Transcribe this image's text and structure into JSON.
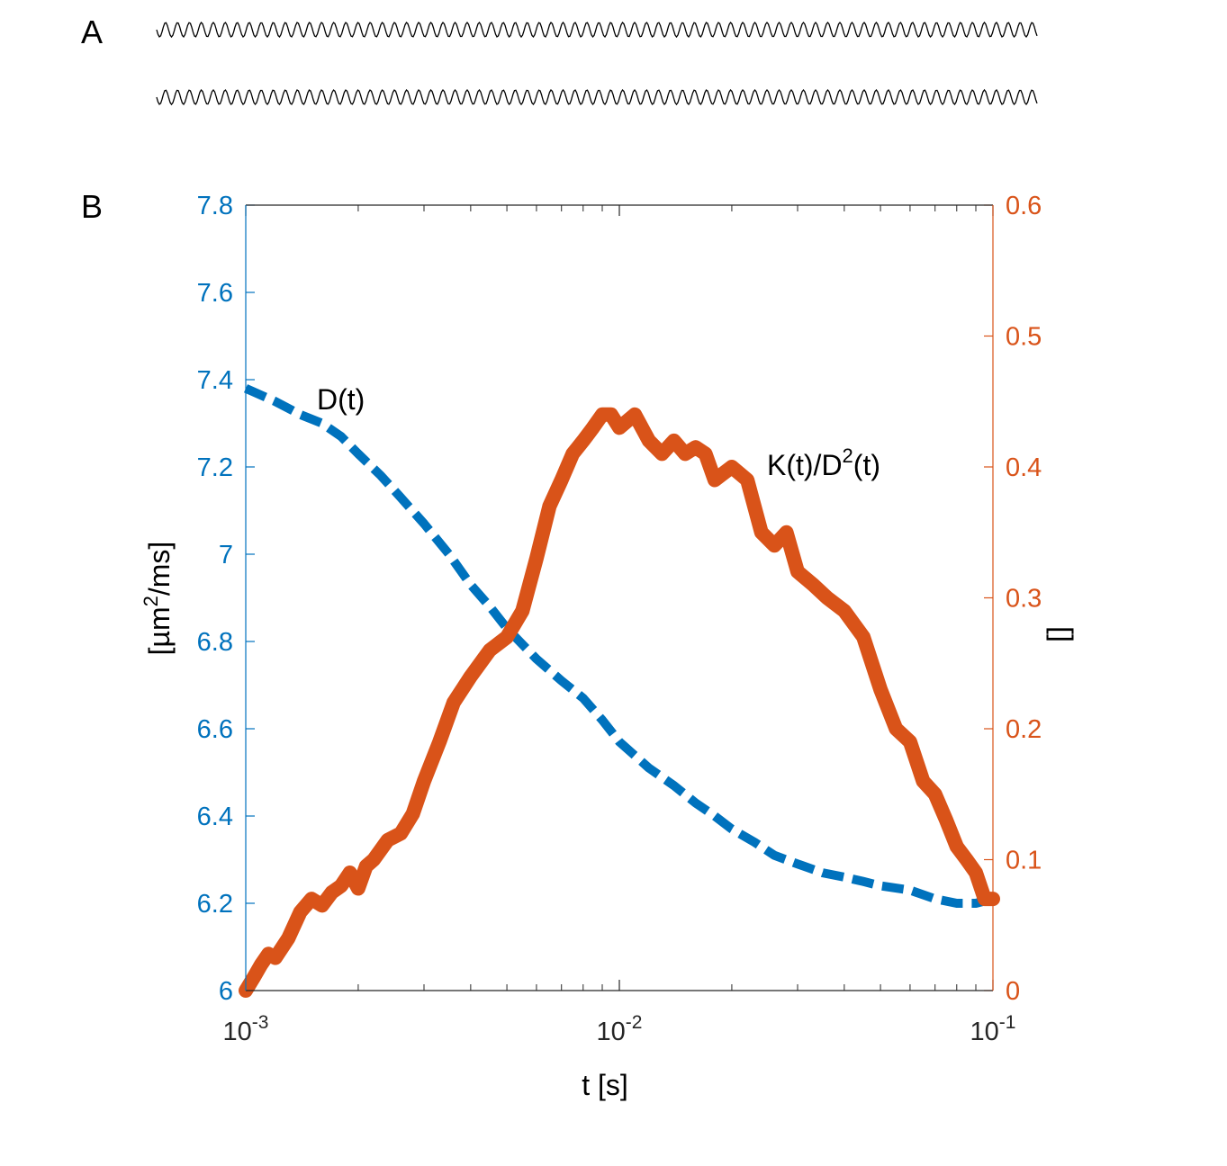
{
  "panels": {
    "a_label": "A",
    "b_label": "B"
  },
  "chart_data": {
    "type": "line",
    "x_scale": "log",
    "xlabel": "t [s]",
    "xlim": [
      0.001,
      0.1
    ],
    "x_ticks": [
      {
        "value": 0.001,
        "base": "10",
        "exp": "-3"
      },
      {
        "value": 0.01,
        "base": "10",
        "exp": "-2"
      },
      {
        "value": 0.1,
        "base": "10",
        "exp": "-1"
      }
    ],
    "ylabel_left": {
      "pre": "[µm",
      "sup": "2",
      "post": "/ms]"
    },
    "ylim_left": [
      6,
      7.8
    ],
    "yticks_left": [
      "6",
      "6.2",
      "6.4",
      "6.6",
      "6.8",
      "7",
      "7.2",
      "7.4",
      "7.6",
      "7.8"
    ],
    "ylabel_right": "[]",
    "ylim_right": [
      0,
      0.6
    ],
    "yticks_right": [
      "0",
      "0.1",
      "0.2",
      "0.3",
      "0.4",
      "0.5",
      "0.6"
    ],
    "colors": {
      "left": "#0072BD",
      "right": "#D95319"
    },
    "annotations": {
      "d": "D(t)",
      "k": {
        "pre": "K(t)/D",
        "sup": "2",
        "post": "(t)"
      }
    },
    "series": [
      {
        "name": "D(t)",
        "axis": "left",
        "style": "dashed",
        "x": [
          0.001,
          0.0012,
          0.0014,
          0.0016,
          0.0018,
          0.002,
          0.0023,
          0.0026,
          0.003,
          0.0035,
          0.004,
          0.0045,
          0.005,
          0.006,
          0.007,
          0.008,
          0.009,
          0.01,
          0.012,
          0.014,
          0.016,
          0.018,
          0.02,
          0.023,
          0.026,
          0.03,
          0.035,
          0.04,
          0.045,
          0.05,
          0.06,
          0.07,
          0.08,
          0.09,
          0.1
        ],
        "values": [
          7.38,
          7.35,
          7.32,
          7.3,
          7.27,
          7.23,
          7.18,
          7.13,
          7.07,
          7.0,
          6.93,
          6.88,
          6.83,
          6.76,
          6.71,
          6.67,
          6.62,
          6.57,
          6.51,
          6.47,
          6.43,
          6.4,
          6.37,
          6.34,
          6.31,
          6.29,
          6.27,
          6.26,
          6.25,
          6.24,
          6.23,
          6.21,
          6.2,
          6.2,
          6.21
        ]
      },
      {
        "name": "K(t)/D^2(t)",
        "axis": "right",
        "style": "solid",
        "x": [
          0.001,
          0.00105,
          0.0011,
          0.00115,
          0.0012,
          0.0013,
          0.0014,
          0.0015,
          0.0016,
          0.0017,
          0.0018,
          0.0019,
          0.002,
          0.0021,
          0.0022,
          0.0024,
          0.0026,
          0.0028,
          0.003,
          0.0033,
          0.0036,
          0.004,
          0.0045,
          0.005,
          0.0055,
          0.006,
          0.0065,
          0.007,
          0.0075,
          0.008,
          0.0085,
          0.009,
          0.0095,
          0.01,
          0.011,
          0.012,
          0.013,
          0.014,
          0.015,
          0.016,
          0.017,
          0.018,
          0.02,
          0.022,
          0.024,
          0.026,
          0.028,
          0.03,
          0.033,
          0.036,
          0.04,
          0.045,
          0.05,
          0.055,
          0.06,
          0.065,
          0.07,
          0.075,
          0.08,
          0.085,
          0.09,
          0.095,
          0.1
        ],
        "values": [
          0.0,
          0.01,
          0.02,
          0.028,
          0.025,
          0.04,
          0.06,
          0.07,
          0.065,
          0.075,
          0.08,
          0.09,
          0.078,
          0.095,
          0.1,
          0.115,
          0.12,
          0.135,
          0.16,
          0.19,
          0.22,
          0.24,
          0.26,
          0.27,
          0.29,
          0.33,
          0.37,
          0.39,
          0.41,
          0.42,
          0.43,
          0.44,
          0.44,
          0.43,
          0.44,
          0.42,
          0.41,
          0.42,
          0.41,
          0.415,
          0.41,
          0.39,
          0.4,
          0.39,
          0.35,
          0.34,
          0.35,
          0.32,
          0.31,
          0.3,
          0.29,
          0.27,
          0.23,
          0.2,
          0.19,
          0.16,
          0.15,
          0.13,
          0.11,
          0.1,
          0.09,
          0.07,
          0.07
        ]
      }
    ]
  }
}
